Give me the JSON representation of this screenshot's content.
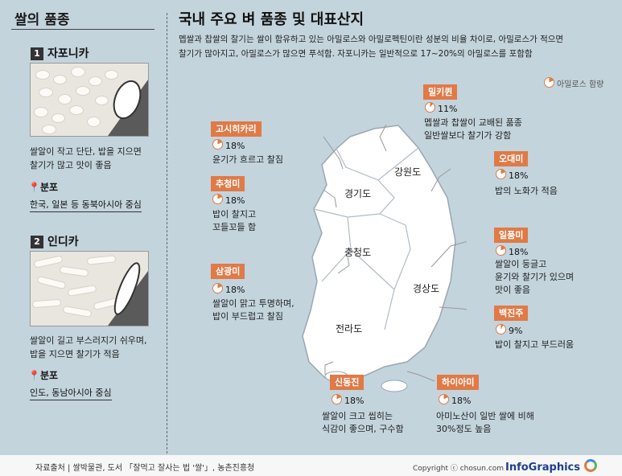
{
  "left": {
    "title": "쌀의 품종",
    "types": [
      {
        "num": "1",
        "name": "자포니카",
        "desc_lines": [
          "쌀알이 작고 단단, 밥을 지으면",
          "찰기가 많고 맛이 좋음"
        ],
        "dist_label": "분포",
        "dist_value": "한국, 일본 등 동북아시아 중심"
      },
      {
        "num": "2",
        "name": "인디카",
        "desc_lines": [
          "쌀알이 길고 부스러지기 쉬우며,",
          "밥을 지으면 찰기가 적음"
        ],
        "dist_label": "분포",
        "dist_value": "인도, 동남아시아 중심"
      }
    ]
  },
  "main": {
    "title": "국내 주요 벼 품종 및 대표산지",
    "intro_lines": [
      "멥쌀과 찹쌀의 찰기는 쌀이 함유하고 있는 아밀로스와 아밀로펙틴이란 성분의 비율 차이로, 아밀로스가 적으면",
      "찰기가 많아지고, 아밀로스가 많으면 푸석함. 자포니카는 일반적으로 17~20%의 아밀로스를 포함함"
    ],
    "legend": "아밀로스 함량",
    "regions": [
      "강원도",
      "경기도",
      "충청도",
      "경상도",
      "전라도"
    ],
    "varieties": [
      {
        "name": "밀키퀸",
        "pct": "11%",
        "amylose": 11,
        "lines": [
          "멥쌀과 찹쌀이 교배된 품종",
          "일반쌀보다 찰기가 강함"
        ]
      },
      {
        "name": "고시히카리",
        "pct": "18%",
        "amylose": 18,
        "lines": [
          "윤기가 흐르고 찰짐"
        ]
      },
      {
        "name": "오대미",
        "pct": "18%",
        "amylose": 18,
        "lines": [
          "밥의 노화가 적음"
        ]
      },
      {
        "name": "추청미",
        "pct": "18%",
        "amylose": 18,
        "lines": [
          "밥이  찰지고",
          "꼬들꼬들 함"
        ]
      },
      {
        "name": "일품미",
        "pct": "18%",
        "amylose": 18,
        "lines": [
          "쌀알이 둥글고",
          "윤기와 찰기가 있으며",
          "맛이 좋음"
        ]
      },
      {
        "name": "삼광미",
        "pct": "18%",
        "amylose": 18,
        "lines": [
          "쌀알이 맑고 투명하며,",
          "밥이 부드럽고 찰짐"
        ]
      },
      {
        "name": "백진주",
        "pct": "9%",
        "amylose": 9,
        "lines": [
          "밥이 찰지고 부드러움"
        ]
      },
      {
        "name": "신동진",
        "pct": "18%",
        "amylose": 18,
        "lines": [
          "쌀알이 크고 씹히는",
          "식감이 좋으며, 구수함"
        ]
      },
      {
        "name": "하이아미",
        "pct": "18%",
        "amylose": 18,
        "lines": [
          "아미노산이 일반 쌀에 비해",
          "30%정도 높음"
        ]
      }
    ]
  },
  "footer": {
    "source": "자료출처 | 쌀박물관, 도서 「잘먹고 잘사는 법 '쌀'」, 농촌진흥청",
    "copyright": "Copyright ⓒ chosun.com",
    "brand": "InfoGraphics"
  },
  "colors": {
    "accent": "#e07a47",
    "background": "#c3d4dd",
    "map_fill": "#ffffff"
  }
}
